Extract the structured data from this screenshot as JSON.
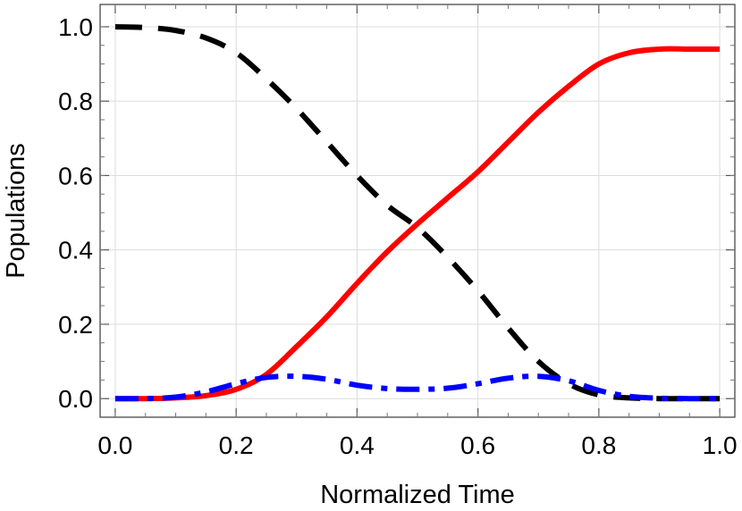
{
  "chart_data": {
    "type": "line",
    "xlabel": "Normalized Time",
    "ylabel": "Populations",
    "xlim": [
      -0.025,
      1.025
    ],
    "ylim": [
      -0.05,
      1.06
    ],
    "xticks": [
      {
        "value": 0.0,
        "label": "0.0"
      },
      {
        "value": 0.2,
        "label": "0.2"
      },
      {
        "value": 0.4,
        "label": "0.4"
      },
      {
        "value": 0.6,
        "label": "0.6"
      },
      {
        "value": 0.8,
        "label": "0.8"
      },
      {
        "value": 1.0,
        "label": "1.0"
      }
    ],
    "yticks": [
      {
        "value": 0.0,
        "label": "0.0"
      },
      {
        "value": 0.2,
        "label": "0.2"
      },
      {
        "value": 0.4,
        "label": "0.4"
      },
      {
        "value": 0.6,
        "label": "0.6"
      },
      {
        "value": 0.8,
        "label": "0.8"
      },
      {
        "value": 1.0,
        "label": "1.0"
      }
    ],
    "grid": true,
    "series": [
      {
        "color": "#000000",
        "style": "dashed",
        "x": [
          0.0,
          0.05,
          0.1,
          0.15,
          0.2,
          0.25,
          0.3,
          0.35,
          0.4,
          0.45,
          0.5,
          0.55,
          0.6,
          0.65,
          0.7,
          0.75,
          0.8,
          0.85,
          0.9,
          0.95,
          1.0
        ],
        "y": [
          1.0,
          0.998,
          0.99,
          0.97,
          0.93,
          0.86,
          0.78,
          0.69,
          0.6,
          0.52,
          0.46,
          0.38,
          0.29,
          0.19,
          0.1,
          0.04,
          0.01,
          0.002,
          0.0,
          0.0,
          0.0
        ]
      },
      {
        "color": "#ff0000",
        "style": "solid",
        "x": [
          0.0,
          0.05,
          0.1,
          0.15,
          0.2,
          0.25,
          0.3,
          0.35,
          0.4,
          0.45,
          0.5,
          0.55,
          0.6,
          0.65,
          0.7,
          0.75,
          0.8,
          0.85,
          0.9,
          0.95,
          1.0
        ],
        "y": [
          0.0,
          0.0,
          0.002,
          0.008,
          0.025,
          0.065,
          0.14,
          0.22,
          0.31,
          0.395,
          0.47,
          0.54,
          0.61,
          0.69,
          0.77,
          0.84,
          0.9,
          0.93,
          0.94,
          0.94,
          0.94
        ]
      },
      {
        "color": "#0000ff",
        "style": "dashdot",
        "x": [
          0.0,
          0.05,
          0.1,
          0.15,
          0.2,
          0.25,
          0.3,
          0.35,
          0.4,
          0.45,
          0.5,
          0.55,
          0.6,
          0.65,
          0.7,
          0.75,
          0.8,
          0.85,
          0.9,
          0.95,
          1.0
        ],
        "y": [
          0.0,
          0.0,
          0.004,
          0.018,
          0.04,
          0.057,
          0.06,
          0.052,
          0.036,
          0.027,
          0.025,
          0.028,
          0.04,
          0.055,
          0.06,
          0.048,
          0.022,
          0.006,
          0.001,
          0.0,
          0.0
        ]
      }
    ]
  }
}
